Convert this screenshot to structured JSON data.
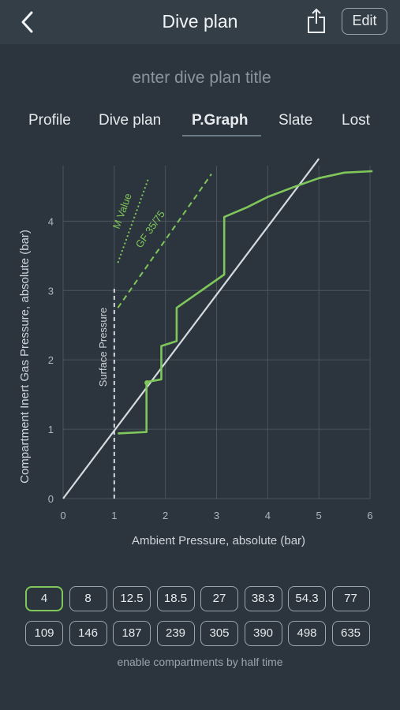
{
  "nav": {
    "title": "Dive plan",
    "back_icon": "chevron-left-icon",
    "share_icon": "share-icon",
    "edit_label": "Edit"
  },
  "title_input": {
    "placeholder": "enter dive plan title",
    "value": ""
  },
  "tabs": [
    {
      "label": "Profile",
      "active": false
    },
    {
      "label": "Dive plan",
      "active": false
    },
    {
      "label": "P.Graph",
      "active": true
    },
    {
      "label": "Slate",
      "active": false
    },
    {
      "label": "Lost",
      "active": false
    }
  ],
  "colors": {
    "background": "#2c353d",
    "accent_green": "#7fc75a",
    "line_white": "#d6dbe0",
    "grid": "#4a545d"
  },
  "chart_data": {
    "type": "line",
    "xlabel": "Ambient Pressure, absolute (bar)",
    "ylabel": "Compartment Inert Gas Pressure, absolute (bar)",
    "xlim": [
      0,
      6
    ],
    "ylim": [
      0,
      4.8
    ],
    "x_ticks": [
      "0",
      "1",
      "2",
      "3",
      "4",
      "5",
      "6"
    ],
    "y_ticks": [
      "0",
      "1",
      "2",
      "3",
      "4"
    ],
    "grid": true,
    "annotations": {
      "surface_pressure": "Surface Pressure",
      "m_value": "M Value",
      "gf": "GF 35/75"
    },
    "series": [
      {
        "style": "solid-white",
        "x": [
          0,
          5.0
        ],
        "y": [
          0,
          4.9
        ]
      },
      {
        "style": "solid-green",
        "x": [
          1.07,
          1.63,
          1.63,
          1.92,
          1.92,
          2.22,
          2.22,
          3.15,
          3.15,
          3.6,
          4.0,
          4.5,
          5.0,
          5.5,
          6.05
        ],
        "y": [
          0.94,
          0.96,
          1.68,
          1.72,
          2.2,
          2.27,
          2.75,
          3.23,
          4.06,
          4.2,
          4.35,
          4.49,
          4.62,
          4.7,
          4.72
        ]
      },
      {
        "style": "dashed-white",
        "x": [
          1.0,
          1.0
        ],
        "y": [
          0,
          3.05
        ]
      },
      {
        "style": "dotted-green",
        "x": [
          1.07,
          1.66
        ],
        "y": [
          3.4,
          4.6
        ]
      },
      {
        "style": "dashed-green",
        "x": [
          1.07,
          2.9
        ],
        "y": [
          2.75,
          4.68
        ]
      }
    ],
    "markers": [
      {
        "x": 1.64,
        "y": 1.67
      }
    ]
  },
  "compartments": {
    "buttons": [
      "4",
      "8",
      "12.5",
      "18.5",
      "27",
      "38.3",
      "54.3",
      "77",
      "109",
      "146",
      "187",
      "239",
      "305",
      "390",
      "498",
      "635"
    ],
    "selected": "4",
    "caption": "enable compartments by half time"
  }
}
